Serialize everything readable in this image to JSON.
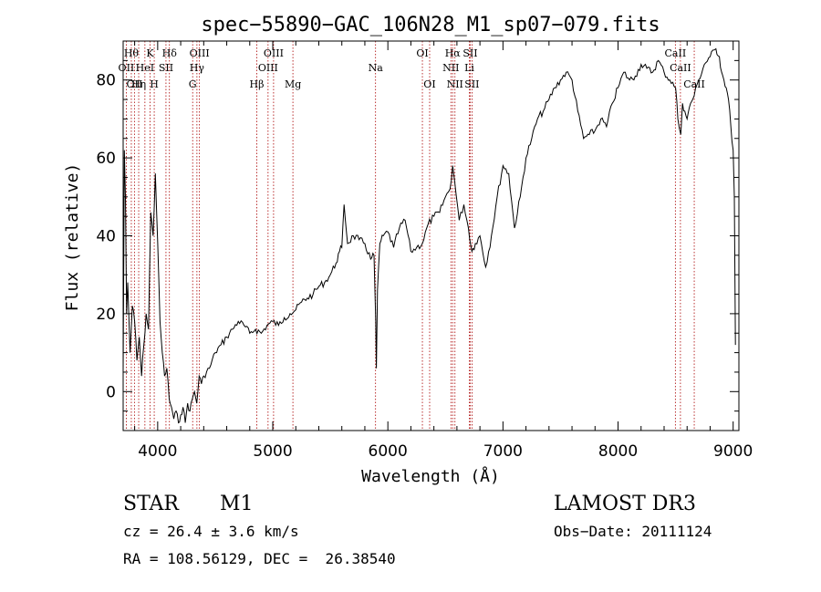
{
  "chart_data": {
    "type": "line",
    "title": "spec−55890−GAC_106N28_M1_sp07−079.fits",
    "xlabel": "Wavelength (Å)",
    "ylabel": "Flux (relative)",
    "xlim": [
      3700,
      9050
    ],
    "ylim": [
      -10,
      90
    ],
    "xticks": [
      4000,
      5000,
      6000,
      7000,
      8000,
      9000
    ],
    "yticks": [
      0,
      20,
      40,
      60,
      80
    ],
    "grid": false,
    "line_color": "#000000",
    "marker_color": "#aa0000",
    "series": [
      {
        "x": [
          3700,
          3710,
          3720,
          3730,
          3740,
          3760,
          3780,
          3800,
          3820,
          3840,
          3860,
          3880,
          3900,
          3920,
          3940,
          3960,
          3980,
          4000,
          4020,
          4040,
          4060,
          4080,
          4100,
          4120,
          4140,
          4160,
          4180,
          4200,
          4220,
          4240,
          4260,
          4280,
          4300,
          4320,
          4340,
          4360,
          4380,
          4400,
          4450,
          4500,
          4550,
          4600,
          4650,
          4700,
          4750,
          4800,
          4850,
          4900,
          4950,
          5000,
          5050,
          5100,
          5150,
          5200,
          5250,
          5300,
          5350,
          5400,
          5450,
          5500,
          5550,
          5580,
          5600,
          5620,
          5650,
          5700,
          5750,
          5800,
          5850,
          5880,
          5895,
          5900,
          5910,
          5930,
          5960,
          6000,
          6050,
          6100,
          6150,
          6200,
          6250,
          6300,
          6350,
          6400,
          6450,
          6500,
          6540,
          6563,
          6580,
          6620,
          6660,
          6700,
          6730,
          6760,
          6800,
          6850,
          6900,
          6950,
          7000,
          7050,
          7100,
          7150,
          7200,
          7250,
          7300,
          7350,
          7400,
          7450,
          7500,
          7550,
          7600,
          7650,
          7700,
          7750,
          7800,
          7850,
          7900,
          7950,
          8000,
          8050,
          8100,
          8150,
          8200,
          8250,
          8300,
          8350,
          8400,
          8450,
          8500,
          8520,
          8545,
          8560,
          8580,
          8600,
          8630,
          8662,
          8700,
          8750,
          8800,
          8850,
          8880,
          8900,
          8920,
          8940,
          8960,
          8980,
          9000,
          9010,
          9020
        ],
        "values": [
          5,
          62,
          50,
          20,
          28,
          10,
          22,
          18,
          8,
          14,
          4,
          12,
          20,
          16,
          46,
          40,
          56,
          38,
          18,
          10,
          4,
          6,
          -2,
          -4,
          -7,
          -5,
          -8,
          -6,
          -4,
          -8,
          -3,
          -5,
          -2,
          0,
          -3,
          4,
          2,
          4,
          6,
          10,
          12,
          14,
          16,
          18,
          17,
          15,
          16,
          15,
          17,
          18,
          17,
          19,
          20,
          21,
          23,
          24,
          25,
          27,
          28,
          30,
          33,
          36,
          37,
          48,
          38,
          40,
          39,
          38,
          34,
          35,
          18,
          6,
          26,
          38,
          40,
          41,
          37,
          42,
          44,
          36,
          37,
          38,
          43,
          45,
          46,
          50,
          52,
          58,
          54,
          44,
          48,
          42,
          36,
          38,
          40,
          32,
          40,
          50,
          58,
          56,
          42,
          50,
          60,
          65,
          70,
          72,
          75,
          78,
          80,
          82,
          80,
          72,
          65,
          66,
          67,
          70,
          68,
          74,
          78,
          82,
          80,
          81,
          84,
          83,
          82,
          85,
          82,
          80,
          78,
          70,
          66,
          74,
          72,
          70,
          74,
          76,
          80,
          84,
          86,
          88,
          86,
          82,
          80,
          78,
          75,
          68,
          62,
          50,
          12
        ]
      }
    ],
    "line_markers": [
      {
        "w": 3727,
        "label": "OII",
        "row": 2
      },
      {
        "w": 3771,
        "label": "Hθ",
        "row": 1
      },
      {
        "w": 3798,
        "label": "OII",
        "row": 3
      },
      {
        "w": 3835,
        "label": "Hη",
        "row": 3
      },
      {
        "w": 3889,
        "label": "HeI",
        "row": 2
      },
      {
        "w": 3934,
        "label": "K",
        "row": 1
      },
      {
        "w": 3970,
        "label": "H",
        "row": 3
      },
      {
        "w": 4072,
        "label": "SII",
        "row": 2
      },
      {
        "w": 4102,
        "label": "Hδ",
        "row": 1
      },
      {
        "w": 4304,
        "label": "G",
        "row": 3
      },
      {
        "w": 4341,
        "label": "Hγ",
        "row": 2
      },
      {
        "w": 4363,
        "label": "OIII",
        "row": 1
      },
      {
        "w": 4861,
        "label": "Hβ",
        "row": 3
      },
      {
        "w": 4959,
        "label": "OIII",
        "row": 2
      },
      {
        "w": 5007,
        "label": "OIII",
        "row": 1
      },
      {
        "w": 5175,
        "label": "Mg",
        "row": 3
      },
      {
        "w": 5893,
        "label": "Na",
        "row": 2
      },
      {
        "w": 6300,
        "label": "OI",
        "row": 1
      },
      {
        "w": 6363,
        "label": "OI",
        "row": 3
      },
      {
        "w": 6548,
        "label": "NII",
        "row": 2
      },
      {
        "w": 6563,
        "label": "Hα",
        "row": 1
      },
      {
        "w": 6583,
        "label": "NII",
        "row": 3
      },
      {
        "w": 6708,
        "label": "Li",
        "row": 2
      },
      {
        "w": 6716,
        "label": "SII",
        "row": 1
      },
      {
        "w": 6731,
        "label": "SII",
        "row": 3
      },
      {
        "w": 8498,
        "label": "CaII",
        "row": 1
      },
      {
        "w": 8542,
        "label": "CaII",
        "row": 2
      },
      {
        "w": 8662,
        "label": "CaII",
        "row": 3
      }
    ]
  },
  "info": {
    "object_class": "STAR",
    "subclass": "M1",
    "redshift": "cz = 26.4 ± 3.6 km/s",
    "coords": "RA = 108.56129, DEC =  26.38540",
    "survey": "LAMOST DR3",
    "obs_date": "Obs−Date: 20111124"
  }
}
